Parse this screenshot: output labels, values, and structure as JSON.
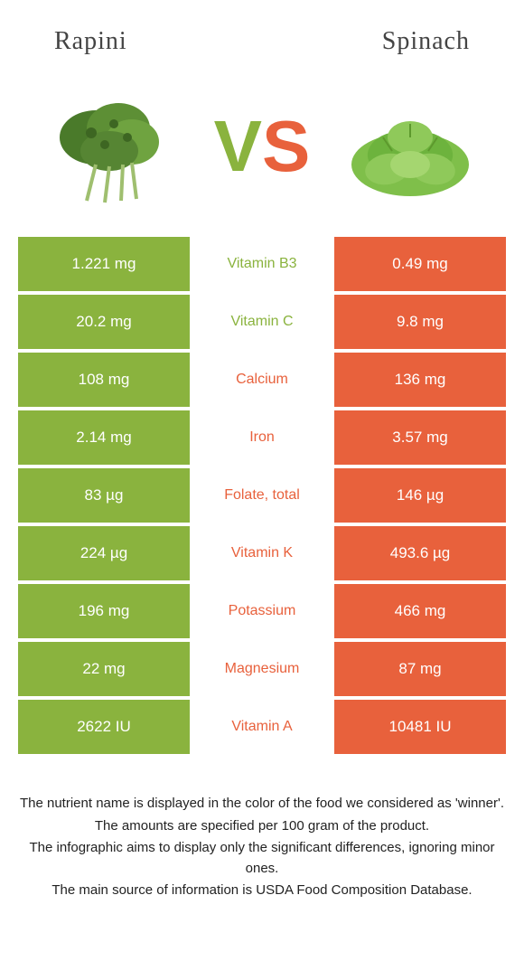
{
  "food_left": {
    "name": "Rapini",
    "color": "#8ab33e"
  },
  "food_right": {
    "name": "Spinach",
    "color": "#e8613c"
  },
  "rows": [
    {
      "left": "1.221 mg",
      "nutrient": "Vitamin B3",
      "right": "0.49 mg",
      "winner": "left"
    },
    {
      "left": "20.2 mg",
      "nutrient": "Vitamin C",
      "right": "9.8 mg",
      "winner": "left"
    },
    {
      "left": "108 mg",
      "nutrient": "Calcium",
      "right": "136 mg",
      "winner": "right"
    },
    {
      "left": "2.14 mg",
      "nutrient": "Iron",
      "right": "3.57 mg",
      "winner": "right"
    },
    {
      "left": "83 µg",
      "nutrient": "Folate, total",
      "right": "146 µg",
      "winner": "right"
    },
    {
      "left": "224 µg",
      "nutrient": "Vitamin K",
      "right": "493.6 µg",
      "winner": "right"
    },
    {
      "left": "196 mg",
      "nutrient": "Potassium",
      "right": "466 mg",
      "winner": "right"
    },
    {
      "left": "22 mg",
      "nutrient": "Magnesium",
      "right": "87 mg",
      "winner": "right"
    },
    {
      "left": "2622 IU",
      "nutrient": "Vitamin A",
      "right": "10481 IU",
      "winner": "right"
    }
  ],
  "footer": {
    "line1": "The nutrient name is displayed in the color of the food we considered as 'winner'.",
    "line2": "The amounts are specified per 100 gram of the product.",
    "line3": "The infographic aims to display only the significant differences, ignoring minor ones.",
    "line4": "The main source of information is USDA Food Composition Database."
  }
}
